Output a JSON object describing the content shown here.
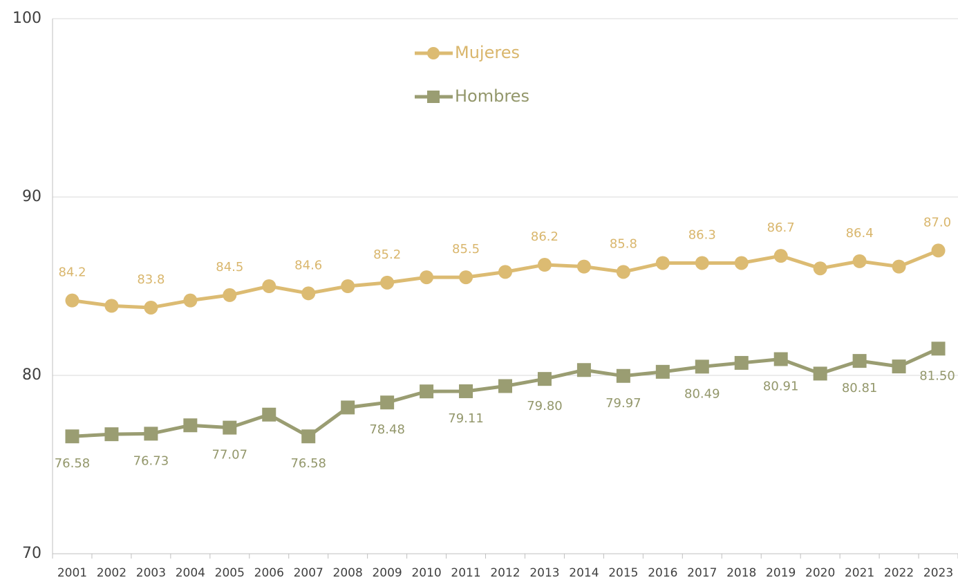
{
  "chart_data": {
    "type": "line",
    "categories": [
      "2001",
      "2002",
      "2003",
      "2004",
      "2005",
      "2006",
      "2007",
      "2008",
      "2009",
      "2010",
      "2011",
      "2012",
      "2013",
      "2014",
      "2015",
      "2016",
      "2017",
      "2018",
      "2019",
      "2020",
      "2021",
      "2022",
      "2023"
    ],
    "series": [
      {
        "name": "Mujeres",
        "color": "#dcbb72",
        "label_color": "#d9b66c",
        "marker": "circle",
        "label_position": "above",
        "values": [
          84.2,
          83.9,
          83.8,
          84.2,
          84.5,
          85.0,
          84.6,
          85.0,
          85.2,
          85.5,
          85.5,
          85.8,
          86.2,
          86.1,
          85.8,
          86.3,
          86.3,
          86.3,
          86.7,
          86.0,
          86.4,
          86.1,
          87.0
        ],
        "value_labels": [
          "84.2",
          null,
          "83.8",
          null,
          "84.5",
          null,
          "84.6",
          null,
          "85.2",
          null,
          "85.5",
          null,
          "86.2",
          null,
          "85.8",
          null,
          "86.3",
          null,
          "86.7",
          null,
          "86.4",
          null,
          "87.0"
        ]
      },
      {
        "name": "Hombres",
        "color": "#9a9d72",
        "label_color": "#93976b",
        "marker": "square",
        "label_position": "below",
        "values": [
          76.58,
          76.7,
          76.73,
          77.2,
          77.07,
          77.8,
          76.58,
          78.2,
          78.48,
          79.1,
          79.11,
          79.4,
          79.8,
          80.3,
          79.97,
          80.2,
          80.49,
          80.7,
          80.91,
          80.1,
          80.81,
          80.5,
          81.5
        ],
        "value_labels": [
          "76.58",
          null,
          "76.73",
          null,
          "77.07",
          null,
          "76.58",
          null,
          "78.48",
          null,
          "79.11",
          null,
          "79.80",
          null,
          "79.97",
          null,
          "80.49",
          null,
          "80.91",
          null,
          "80.81",
          null,
          "81.50"
        ]
      }
    ],
    "ylim": [
      70,
      100
    ],
    "yticks": [
      70,
      80,
      90,
      100
    ],
    "grid": true,
    "legend": "top"
  }
}
